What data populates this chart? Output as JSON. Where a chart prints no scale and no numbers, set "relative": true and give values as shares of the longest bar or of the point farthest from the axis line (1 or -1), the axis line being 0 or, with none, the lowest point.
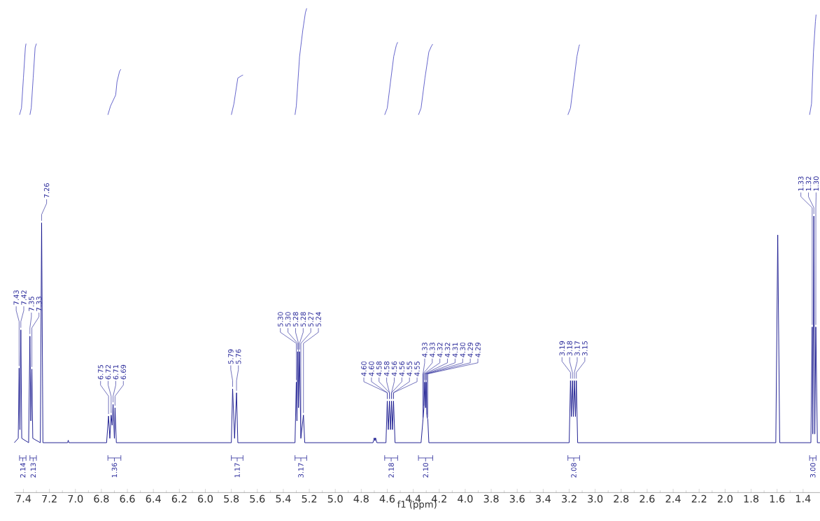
{
  "chart_data": {
    "type": "line",
    "relative": true,
    "xlabel": "f1 (ppm)",
    "xlim": [
      7.47,
      1.27
    ],
    "xticks": [
      7.4,
      7.2,
      {
        "value": 7,
        "label": "7.0"
      },
      6.8,
      6.6,
      6.4,
      6.2,
      {
        "value": 6,
        "label": "6.0"
      },
      5.8,
      5.6,
      5.4,
      5.2,
      {
        "value": 5,
        "label": "5.0"
      },
      4.8,
      4.6,
      4.4,
      4.2,
      {
        "value": 4,
        "label": "4.0"
      },
      3.8,
      3.6,
      3.4,
      3.2,
      {
        "value": 3,
        "label": "3.0"
      },
      2.8,
      2.6,
      2.4,
      2.2,
      {
        "value": 2,
        "label": "2.0"
      },
      1.8,
      1.6,
      1.4
    ],
    "series": [
      {
        "color": "#14148c",
        "x": [
          7.47,
          7.44,
          7.433,
          7.427,
          7.42,
          7.413,
          7.36,
          7.35,
          7.343,
          7.335,
          7.328,
          7.27,
          7.26,
          7.25,
          7.06,
          7.055,
          7.05,
          6.76,
          6.745,
          6.735,
          6.725,
          6.717,
          6.71,
          6.7,
          6.695,
          6.685,
          5.8,
          5.79,
          5.775,
          5.76,
          5.75,
          5.31,
          5.3,
          5.295,
          5.29,
          5.283,
          5.275,
          5.265,
          5.245,
          5.235,
          4.71,
          4.7,
          4.695,
          4.69,
          4.68,
          4.61,
          4.6,
          4.592,
          4.583,
          4.575,
          4.567,
          4.56,
          4.552,
          4.54,
          4.34,
          4.325,
          4.318,
          4.312,
          4.305,
          4.3,
          4.295,
          4.288,
          4.28,
          3.2,
          3.19,
          3.183,
          3.175,
          3.168,
          3.16,
          3.152,
          3.145,
          3.135,
          1.61,
          1.595,
          1.58,
          1.34,
          1.33,
          1.325,
          1.317,
          1.31,
          1.302,
          1.29,
          1.27
        ],
        "values": [
          0.103,
          0.112,
          0.257,
          0.13,
          0.336,
          0.112,
          0.103,
          0.323,
          0.148,
          0.255,
          0.112,
          0.103,
          0.557,
          0.103,
          0.103,
          0.108,
          0.103,
          0.103,
          0.158,
          0.112,
          0.16,
          0.139,
          0.182,
          0.112,
          0.175,
          0.103,
          0.103,
          0.214,
          0.112,
          0.206,
          0.103,
          0.103,
          0.228,
          0.148,
          0.291,
          0.175,
          0.291,
          0.112,
          0.16,
          0.103,
          0.103,
          0.113,
          0.107,
          0.113,
          0.103,
          0.103,
          0.189,
          0.13,
          0.189,
          0.13,
          0.189,
          0.13,
          0.189,
          0.103,
          0.103,
          0.151,
          0.175,
          0.228,
          0.175,
          0.228,
          0.157,
          0.151,
          0.103,
          0.103,
          0.231,
          0.157,
          0.231,
          0.157,
          0.231,
          0.157,
          0.231,
          0.103,
          0.103,
          0.532,
          0.103,
          0.103,
          0.342,
          0.121,
          0.571,
          0.121,
          0.342,
          0.103,
          0.103
        ]
      },
      {
        "color": "#5a5ac8",
        "x": [
          7.43,
          7.415,
          7.4,
          7.385,
          7.38
        ],
        "values": [
          0.78,
          0.794,
          0.856,
          0.919,
          0.927
        ]
      },
      {
        "color": "#5a5ac8",
        "x": [
          7.35,
          7.34,
          7.325,
          7.31,
          7.3
        ],
        "values": [
          0.78,
          0.794,
          0.856,
          0.919,
          0.927
        ]
      },
      {
        "color": "#5a5ac8",
        "x": [
          6.75,
          6.73,
          6.69,
          6.68,
          6.66,
          6.65
        ],
        "values": [
          0.78,
          0.798,
          0.821,
          0.848,
          0.87,
          0.874
        ]
      },
      {
        "color": "#5a5ac8",
        "x": [
          5.8,
          5.78,
          5.77,
          5.75,
          5.72,
          5.71
        ],
        "values": [
          0.78,
          0.803,
          0.821,
          0.856,
          0.861,
          0.862
        ]
      },
      {
        "color": "#5a5ac8",
        "x": [
          5.31,
          5.3,
          5.275,
          5.25,
          5.23,
          5.22
        ],
        "values": [
          0.78,
          0.798,
          0.9,
          0.955,
          0.991,
          1.0
        ]
      },
      {
        "color": "#5a5ac8",
        "x": [
          4.62,
          4.6,
          4.575,
          4.55,
          4.53,
          4.52
        ],
        "values": [
          0.78,
          0.794,
          0.848,
          0.901,
          0.924,
          0.93
        ]
      },
      {
        "color": "#5a5ac8",
        "x": [
          4.36,
          4.34,
          4.31,
          4.28,
          4.26,
          4.25
        ],
        "values": [
          0.78,
          0.794,
          0.856,
          0.91,
          0.922,
          0.926
        ]
      },
      {
        "color": "#5a5ac8",
        "x": [
          3.21,
          3.19,
          3.165,
          3.14,
          3.125,
          3.12
        ],
        "values": [
          0.78,
          0.794,
          0.848,
          0.901,
          0.921,
          0.925
        ]
      },
      {
        "color": "#5a5ac8",
        "x": [
          1.35,
          1.335,
          1.32,
          1.305,
          1.3
        ],
        "values": [
          0.78,
          0.803,
          0.91,
          0.973,
          0.987
        ]
      }
    ],
    "annotations": [
      {
        "text": "7.43",
        "x": 7.433,
        "y": 0.257
      },
      {
        "text": "7.42",
        "x": 7.42,
        "y": 0.336
      },
      {
        "text": "7.35",
        "x": 7.35,
        "y": 0.323
      },
      {
        "text": "7.33",
        "x": 7.335,
        "y": 0.255
      },
      {
        "text": "7.26",
        "x": 7.26,
        "y": 0.557
      },
      {
        "text": "6.75",
        "x": 6.745,
        "y": 0.158
      },
      {
        "text": "6.72",
        "x": 6.725,
        "y": 0.16
      },
      {
        "text": "6.71",
        "x": 6.71,
        "y": 0.182
      },
      {
        "text": "6.69",
        "x": 6.695,
        "y": 0.175
      },
      {
        "text": "5.79",
        "x": 5.79,
        "y": 0.214
      },
      {
        "text": "5.76",
        "x": 5.76,
        "y": 0.206
      },
      {
        "text": "5.30",
        "x": 5.3,
        "y": 0.228
      },
      {
        "text": "5.30",
        "x": 5.29,
        "y": 0.291
      },
      {
        "text": "5.28",
        "x": 5.283,
        "y": 0.175
      },
      {
        "text": "5.28",
        "x": 5.275,
        "y": 0.291
      },
      {
        "text": "5.27",
        "x": 5.265,
        "y": 0.112
      },
      {
        "text": "5.24",
        "x": 5.245,
        "y": 0.16
      },
      {
        "text": "4.60",
        "x": 4.6,
        "y": 0.189
      },
      {
        "text": "4.60",
        "x": 4.6,
        "y": 0.189
      },
      {
        "text": "4.58",
        "x": 4.583,
        "y": 0.189
      },
      {
        "text": "4.58",
        "x": 4.583,
        "y": 0.189
      },
      {
        "text": "4.56",
        "x": 4.567,
        "y": 0.189
      },
      {
        "text": "4.56",
        "x": 4.567,
        "y": 0.189
      },
      {
        "text": "4.55",
        "x": 4.552,
        "y": 0.189
      },
      {
        "text": "4.55",
        "x": 4.552,
        "y": 0.189
      },
      {
        "text": "4.33",
        "x": 4.325,
        "y": 0.151
      },
      {
        "text": "4.33",
        "x": 4.325,
        "y": 0.151
      },
      {
        "text": "4.32",
        "x": 4.318,
        "y": 0.175
      },
      {
        "text": "4.32",
        "x": 4.312,
        "y": 0.228
      },
      {
        "text": "4.31",
        "x": 4.305,
        "y": 0.175
      },
      {
        "text": "4.30",
        "x": 4.3,
        "y": 0.228
      },
      {
        "text": "4.29",
        "x": 4.295,
        "y": 0.157
      },
      {
        "text": "4.29",
        "x": 4.288,
        "y": 0.151
      },
      {
        "text": "3.19",
        "x": 3.19,
        "y": 0.231
      },
      {
        "text": "3.18",
        "x": 3.175,
        "y": 0.231
      },
      {
        "text": "3.17",
        "x": 3.16,
        "y": 0.231
      },
      {
        "text": "3.15",
        "x": 3.145,
        "y": 0.231
      },
      {
        "text": "1.33",
        "x": 1.33,
        "y": 0.342
      },
      {
        "text": "1.32",
        "x": 1.317,
        "y": 0.571
      },
      {
        "text": "1.30",
        "x": 1.302,
        "y": 0.342
      },
      "2.14",
      "2.13",
      "1.36",
      "1.17",
      "3.17",
      "2.18",
      "2.10",
      "2.08",
      "3.00"
    ]
  }
}
